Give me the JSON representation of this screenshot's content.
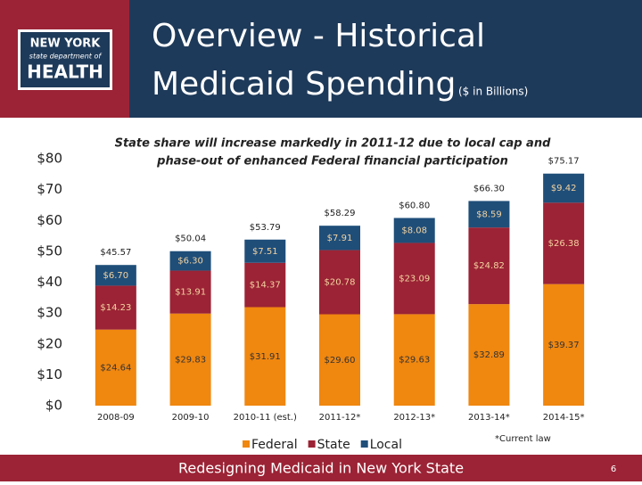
{
  "header": {
    "logo": [
      "NEW YORK",
      "state department of",
      "HEALTH"
    ],
    "title_lines": [
      "Overview - Historical",
      "Medicaid Spending"
    ],
    "title_unit": "($ in Billions)"
  },
  "chart_data": {
    "type": "stacked-bar",
    "annotation": [
      "State share will increase markedly in 2011-12 due to local cap and",
      "phase-out of enhanced Federal financial participation"
    ],
    "categories": [
      "2008-09",
      "2009-10",
      "2010-11 (est.)",
      "2011-12*",
      "2012-13*",
      "2013-14*",
      "2014-15*"
    ],
    "series": [
      {
        "name": "Federal",
        "color": "#f0870f",
        "values": [
          24.64,
          29.83,
          31.91,
          29.6,
          29.63,
          32.89,
          39.37
        ],
        "value_labels": [
          "$24.64",
          "$29.83",
          "$31.91",
          "$29.60",
          "$29.63",
          "$32.89",
          "$39.37"
        ]
      },
      {
        "name": "State",
        "color": "#9b2335",
        "values": [
          14.23,
          13.91,
          14.37,
          20.78,
          23.09,
          24.82,
          26.38
        ],
        "value_labels": [
          "$14.23",
          "$13.91",
          "$14.37",
          "$20.78",
          "$23.09",
          "$24.82",
          "$26.38"
        ]
      },
      {
        "name": "Local",
        "color": "#1f4e79",
        "values": [
          6.7,
          6.3,
          7.51,
          7.91,
          8.08,
          8.59,
          9.42
        ],
        "value_labels": [
          "$6.70",
          "$6.30",
          "$7.51",
          "$7.91",
          "$8.08",
          "$8.59",
          "$9.42"
        ]
      }
    ],
    "totals": [
      45.57,
      50.04,
      53.79,
      58.29,
      60.8,
      66.3,
      75.17
    ],
    "total_labels": [
      "$45.57",
      "$50.04",
      "$53.79",
      "$58.29",
      "$60.80",
      "$66.30",
      "$75.17"
    ],
    "ylim": [
      0,
      80
    ],
    "yticks": [
      {
        "value": 0,
        "label": "$0"
      },
      {
        "value": 10,
        "label": "$10"
      },
      {
        "value": 20,
        "label": "$20"
      },
      {
        "value": 30,
        "label": "$30"
      },
      {
        "value": 40,
        "label": "$40"
      },
      {
        "value": 50,
        "label": "$50"
      },
      {
        "value": 60,
        "label": "$60"
      },
      {
        "value": 70,
        "label": "$70"
      },
      {
        "value": 80,
        "label": "$80"
      }
    ],
    "note": "*Current law"
  },
  "footer": {
    "text": "Redesigning Medicaid in New York State",
    "page": "6"
  }
}
